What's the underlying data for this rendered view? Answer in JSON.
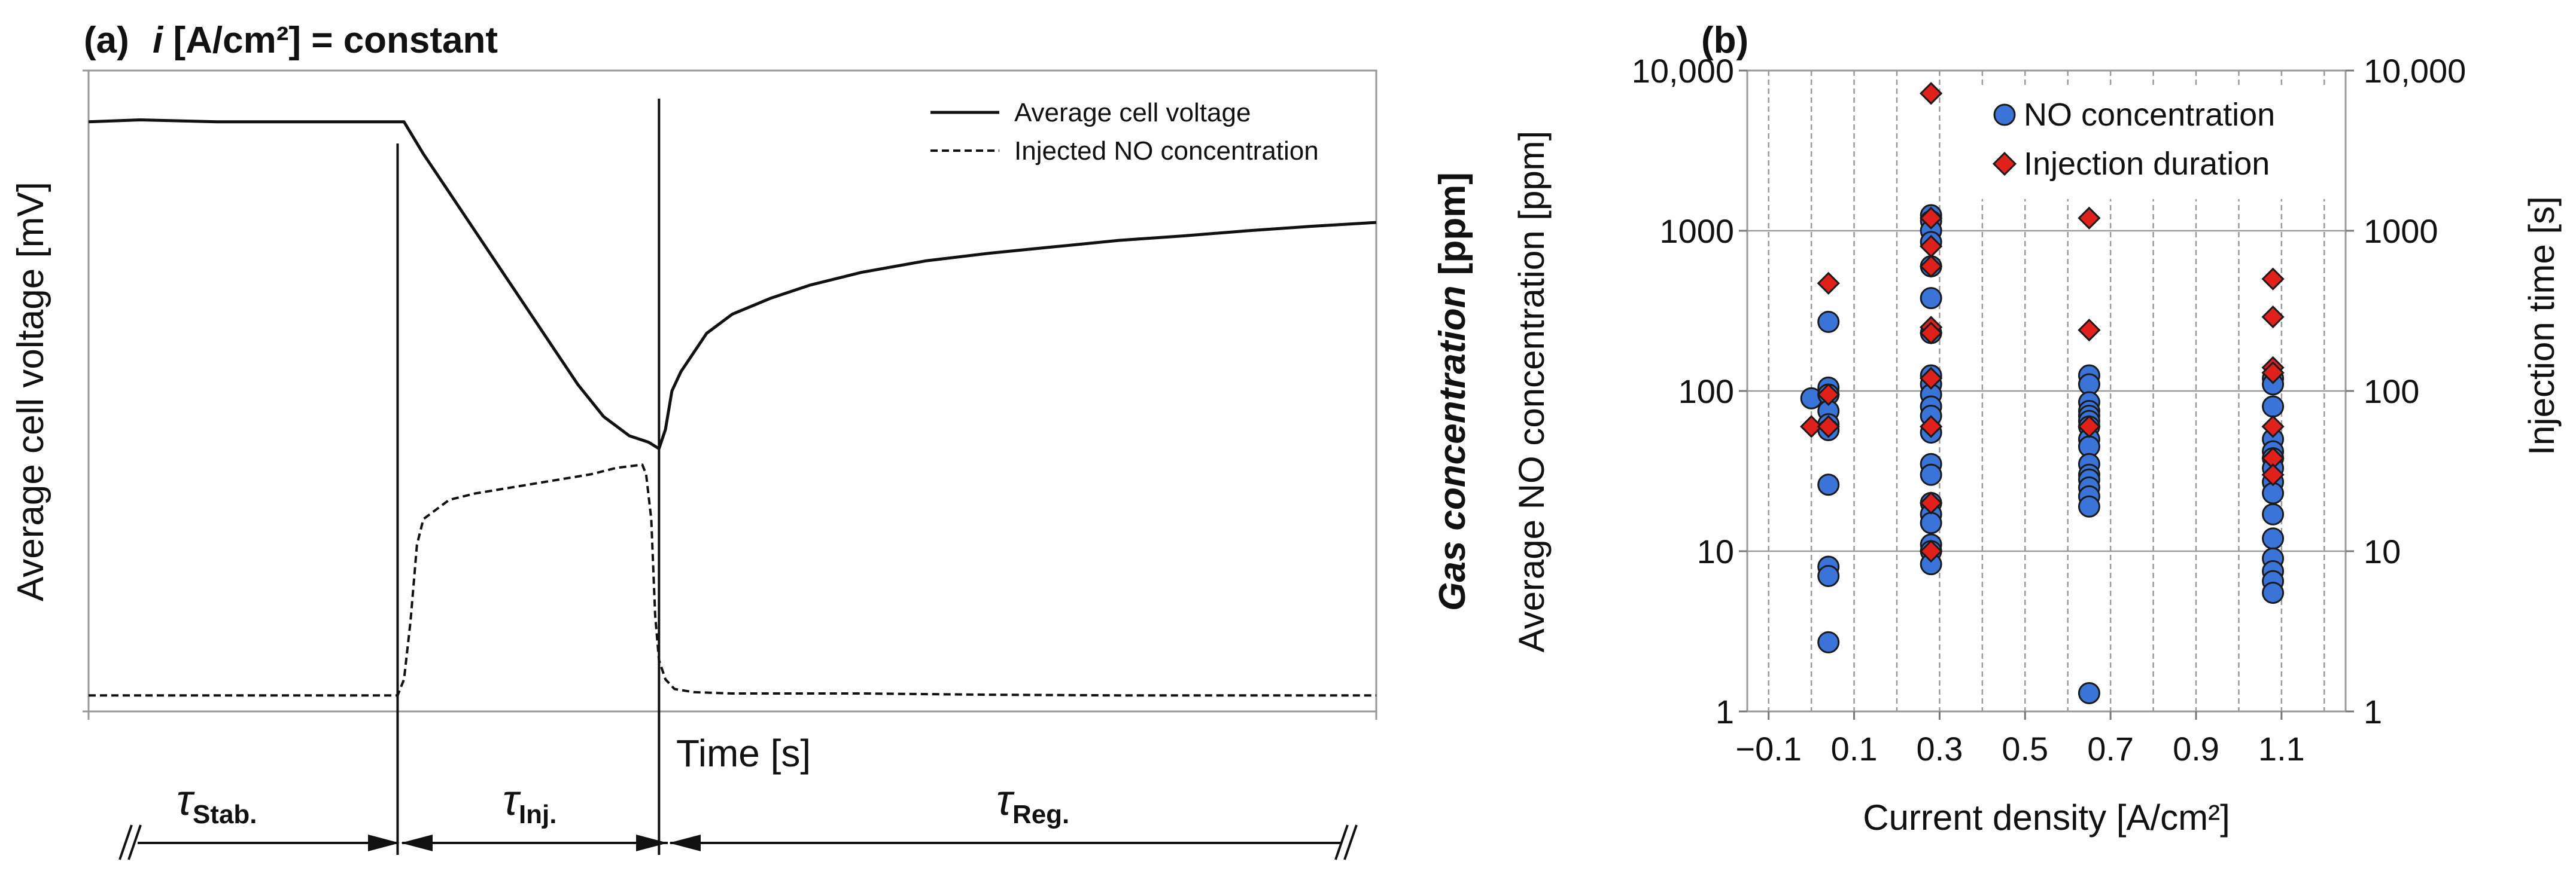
{
  "panel_a": {
    "label": "(a)",
    "title_italic": "i",
    "title_rest": " [A/cm²] = constant",
    "ylabel": "Average cell voltage [mV]",
    "xlabel": "Time [s]",
    "legend": [
      "Average cell voltage",
      "Injected NO concentration"
    ],
    "phases": {
      "stab": {
        "sym": "τ",
        "sub": "Stab."
      },
      "inj": {
        "sym": "τ",
        "sub": "Inj."
      },
      "reg": {
        "sym": "τ",
        "sub": "Reg."
      }
    }
  },
  "panel_b": {
    "label": "(b)",
    "left_title": "Gas concentration",
    "left_title_unit": " [ppm]"
  },
  "chart_data": [
    {
      "type": "line",
      "title": "(a) i [A/cm²] = constant",
      "xlabel": "Time [s]",
      "ylabel": "Average cell voltage [mV]",
      "xlim": [
        0,
        100
      ],
      "ylim": [
        0,
        100
      ],
      "series": [
        {
          "name": "Average cell voltage",
          "style": "solid",
          "x": [
            0,
            4,
            10,
            18,
            24,
            24.5,
            26,
            28,
            30,
            32,
            34,
            36,
            38,
            40,
            42,
            43.5,
            44.3,
            44.8,
            45.3,
            46,
            47,
            48,
            50,
            53,
            56,
            60,
            65,
            70,
            75,
            80,
            85,
            90,
            95,
            100
          ],
          "y": [
            92,
            92.3,
            92,
            92,
            92,
            92,
            87,
            81,
            75,
            69,
            63,
            57,
            51,
            46,
            43,
            42,
            41,
            44,
            50,
            53,
            56,
            59,
            62,
            64.5,
            66.5,
            68.5,
            70.3,
            71.5,
            72.5,
            73.5,
            74.2,
            75,
            75.7,
            76.3
          ]
        },
        {
          "name": "Injected NO concentration",
          "style": "dashed",
          "x": [
            0,
            10,
            20,
            24,
            24.5,
            25,
            25.5,
            26,
            27,
            28,
            30,
            33,
            36,
            39,
            41,
            43,
            43.3,
            43.7,
            44,
            44.3,
            44.8,
            45.5,
            47,
            50,
            60,
            70,
            80,
            90,
            100
          ],
          "y": [
            2.5,
            2.5,
            2.5,
            2.5,
            5,
            14,
            26,
            30,
            31.5,
            33,
            34,
            35,
            36,
            37,
            38,
            38.5,
            37,
            30,
            15,
            8,
            5,
            3.5,
            3,
            2.8,
            2.8,
            2.6,
            2.5,
            2.5,
            2.5
          ]
        }
      ],
      "phase_boundaries": [
        24,
        44.3
      ],
      "phases": [
        "τ Stab.",
        "τ Inj.",
        "τ Reg."
      ]
    },
    {
      "type": "scatter",
      "title": "(b)",
      "xlabel": "Current density [A/cm²]",
      "ylabel": "Average NO concentration [ppm]",
      "y2label": "Injection time [s]",
      "xlim": [
        -0.15,
        1.25
      ],
      "ylim": [
        1,
        10000
      ],
      "y2lim": [
        1,
        10000
      ],
      "yscale": "log",
      "xticks": [
        -0.1,
        0.1,
        0.3,
        0.5,
        0.7,
        0.9,
        1.1
      ],
      "xtick_labels": [
        "−0.1",
        "0.1",
        "0.3",
        "0.5",
        "0.7",
        "0.9",
        "1.1"
      ],
      "yticks": [
        1,
        10,
        100,
        1000,
        10000
      ],
      "ytick_labels": [
        "1",
        "10",
        "100",
        "1000",
        "10,000"
      ],
      "grid": true,
      "legend_position": "top-right",
      "series": [
        {
          "name": "NO concentration",
          "marker": "circle",
          "color": "#3a74d8",
          "x": [
            0,
            0.04,
            0.04,
            0.04,
            0.04,
            0.04,
            0.04,
            0.04,
            0.04,
            0.04,
            0.04,
            0.28,
            0.28,
            0.28,
            0.28,
            0.28,
            0.28,
            0.28,
            0.28,
            0.28,
            0.28,
            0.28,
            0.28,
            0.28,
            0.28,
            0.28,
            0.28,
            0.28,
            0.28,
            0.28,
            0.28,
            0.28,
            0.65,
            0.65,
            0.65,
            0.65,
            0.65,
            0.65,
            0.65,
            0.65,
            0.65,
            0.65,
            0.65,
            0.65,
            0.65,
            0.65,
            0.65,
            0.65,
            1.08,
            1.08,
            1.08,
            1.08,
            1.08,
            1.08,
            1.08,
            1.08,
            1.08,
            1.08,
            1.08,
            1.08,
            1.08,
            1.08,
            1.08
          ],
          "y": [
            90,
            270,
            105,
            95,
            75,
            62,
            57,
            26,
            8,
            7,
            2.7,
            1250,
            1150,
            1000,
            850,
            600,
            380,
            230,
            125,
            110,
            95,
            80,
            70,
            55,
            35,
            30,
            20,
            17,
            15,
            11,
            10,
            8.3,
            125,
            110,
            85,
            75,
            70,
            65,
            60,
            50,
            45,
            35,
            30,
            28,
            25,
            22,
            19,
            1.3,
            120,
            110,
            80,
            50,
            42,
            38,
            33,
            27,
            23,
            17,
            12,
            9,
            7.5,
            6.5,
            5.5
          ]
        },
        {
          "name": "Injection duration",
          "marker": "diamond",
          "color": "#e0201a",
          "x": [
            0,
            0.04,
            0.04,
            0.04,
            0.28,
            0.28,
            0.28,
            0.28,
            0.28,
            0.28,
            0.28,
            0.28,
            0.28,
            0.28,
            0.65,
            0.65,
            0.65,
            1.08,
            1.08,
            1.08,
            1.08,
            1.08,
            1.08,
            1.08
          ],
          "y": [
            60,
            470,
            95,
            60,
            7200,
            1200,
            800,
            600,
            250,
            230,
            120,
            60,
            20,
            10,
            1200,
            240,
            60,
            500,
            290,
            140,
            130,
            60,
            38,
            30
          ]
        }
      ]
    }
  ]
}
